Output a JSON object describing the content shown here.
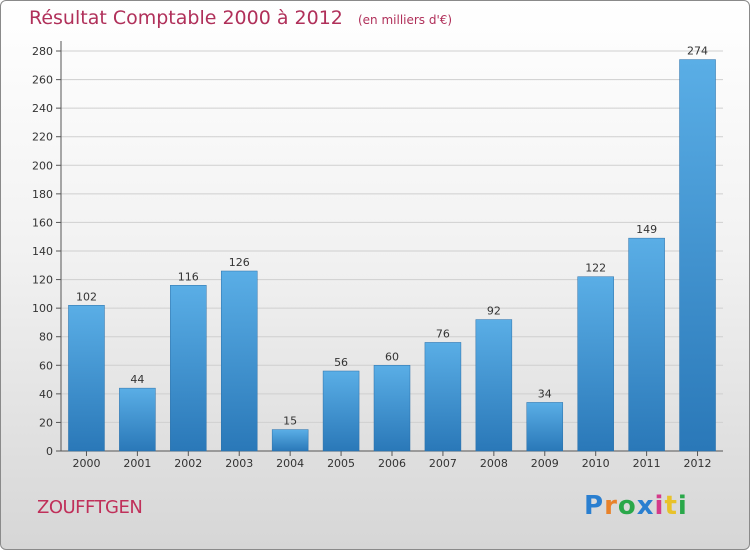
{
  "header": {
    "title": "Résultat Comptable 2000 à 2012",
    "subtitle": "(en milliers d'€)"
  },
  "footer": {
    "commune": "ZOUFFTGEN",
    "logo_text": "Proxiti"
  },
  "colors": {
    "bar_top": "#5aaee6",
    "bar_bottom": "#2a78b8",
    "title": "#b0305a",
    "grid": "#cfcfcf"
  },
  "chart_data": {
    "type": "bar",
    "title": "Résultat Comptable 2000 à 2012",
    "xlabel": "",
    "ylabel": "",
    "ylim": [
      0,
      280
    ],
    "yticks": [
      0,
      20,
      40,
      60,
      80,
      100,
      120,
      140,
      160,
      180,
      200,
      220,
      240,
      260,
      280
    ],
    "categories": [
      "2000",
      "2001",
      "2002",
      "2003",
      "2004",
      "2005",
      "2006",
      "2007",
      "2008",
      "2009",
      "2010",
      "2011",
      "2012"
    ],
    "values": [
      102,
      44,
      116,
      126,
      15,
      56,
      60,
      76,
      92,
      34,
      122,
      149,
      274
    ],
    "grid": true
  }
}
